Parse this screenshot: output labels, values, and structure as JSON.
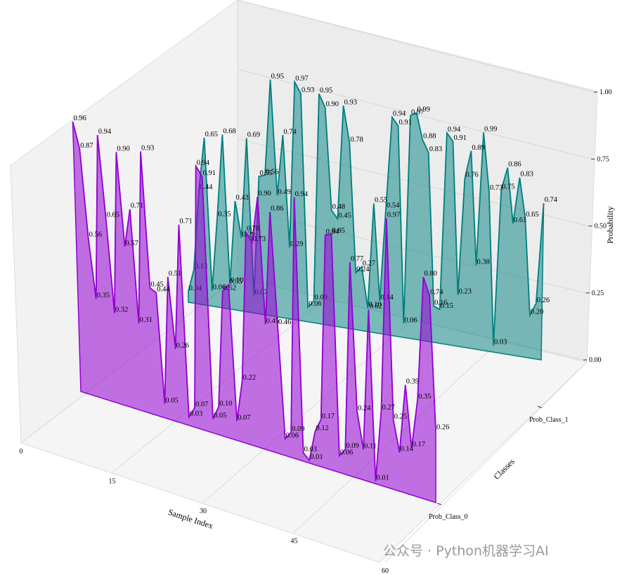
{
  "chart_data": {
    "type": "polygon3d",
    "x_label": "Sample Index",
    "y_label": "Classes",
    "z_label": "Probability",
    "watermark": "公众号 · Python机器学习AI",
    "x": [
      0,
      1,
      2,
      3,
      4,
      5,
      6,
      7,
      8,
      9,
      10,
      11,
      12,
      13,
      14,
      15,
      16,
      17,
      18,
      19,
      20,
      21,
      22,
      23,
      24,
      25,
      26,
      27,
      28,
      29,
      30,
      31,
      32,
      33,
      34,
      35,
      36,
      37,
      38,
      39,
      40,
      41,
      42,
      43,
      44,
      45,
      46,
      47,
      48,
      49,
      50,
      51,
      52,
      53,
      54,
      55,
      56,
      57,
      58,
      59
    ],
    "xlim": [
      0,
      60
    ],
    "xticks": [
      0,
      15,
      30,
      45,
      60
    ],
    "categories": [
      "Prob_Class_0",
      "Prob_Class_1"
    ],
    "zlim": [
      0,
      1
    ],
    "zticks": [
      {
        "value": 0,
        "label": "0.00"
      },
      {
        "value": 0.25,
        "label": "0.25"
      },
      {
        "value": 0.5,
        "label": "0.50"
      },
      {
        "value": 0.75,
        "label": "0.75"
      },
      {
        "value": 1,
        "label": "1.00"
      }
    ],
    "series": [
      {
        "name": "Prob_Class_0",
        "color": "#9400d3",
        "values": [
          0.96,
          0.87,
          0.56,
          0.35,
          0.94,
          0.65,
          0.32,
          0.9,
          0.57,
          0.71,
          0.31,
          0.93,
          0.45,
          0.44,
          0.05,
          0.51,
          0.26,
          0.71,
          0.03,
          0.07,
          0.94,
          0.91,
          0.05,
          0.1,
          0.52,
          0.55,
          0.07,
          0.22,
          0.76,
          0.73,
          0.9,
          0.45,
          0.86,
          0.46,
          0.06,
          0.09,
          0.94,
          0.03,
          0.01,
          0.12,
          0.17,
          0.84,
          0.85,
          0.06,
          0.09,
          0.77,
          0.24,
          0.11,
          0.62,
          0.01,
          0.27,
          0.97,
          0.25,
          0.14,
          0.39,
          0.17,
          0.35,
          0.8,
          0.74,
          0.26
        ],
        "value_labels": [
          "0.96",
          "0.87",
          "0.56",
          "0.35",
          "0.94",
          "0.65",
          "0.32",
          "0.90",
          "0.57",
          "0.71",
          "0.31",
          "0.93",
          "0.45",
          "0.44",
          "0.05",
          "0.51",
          "0.26",
          "0.71",
          "0.03",
          "0.07",
          "0.94",
          "0.91",
          "0.05",
          "0.10",
          "0.52",
          "0.55",
          "0.07",
          "0.22",
          "0.76",
          "0.73",
          "0.90",
          "0.45",
          "0.86",
          "0.46",
          "0.06",
          "0.09",
          "0.94",
          "0.03",
          "0.01",
          "0.12",
          "0.17",
          "0.84",
          "0.85",
          "0.06",
          "0.09",
          "0.77",
          "0.24",
          "0.11",
          "0.62",
          "0.01",
          "0.27",
          "0.97",
          "0.25",
          "0.14",
          "0.39",
          "0.17",
          "0.35",
          "0.80",
          "0.74",
          "0.26"
        ]
      },
      {
        "name": "Prob_Class_1",
        "color": "#008080",
        "values": [
          0.04,
          0.13,
          0.44,
          0.65,
          0.06,
          0.35,
          0.68,
          0.1,
          0.43,
          0.29,
          0.69,
          0.07,
          0.55,
          0.56,
          0.95,
          0.49,
          0.74,
          0.29,
          0.97,
          0.93,
          0.06,
          0.09,
          0.95,
          0.9,
          0.48,
          0.45,
          0.93,
          0.78,
          0.24,
          0.27,
          0.1,
          0.55,
          0.14,
          0.54,
          0.94,
          0.91,
          0.06,
          0.97,
          0.99,
          0.88,
          0.83,
          0.16,
          0.15,
          0.94,
          0.91,
          0.23,
          0.76,
          0.89,
          0.38,
          0.99,
          0.73,
          0.03,
          0.75,
          0.86,
          0.61,
          0.83,
          0.65,
          0.2,
          0.26,
          0.74
        ],
        "value_labels": [
          "0.04",
          "0.13",
          "0.44",
          "0.65",
          "0.06",
          "0.35",
          "0.68",
          "0.10",
          "0.43",
          "0.29",
          "0.69",
          "0.07",
          "0.55",
          "0.56",
          "0.95",
          "0.49",
          "0.74",
          "0.29",
          "0.97",
          "0.93",
          "0.06",
          "0.09",
          "0.95",
          "0.90",
          "0.48",
          "0.45",
          "0.93",
          "0.78",
          "0.24",
          "0.27",
          "0.10",
          "0.55",
          "0.14",
          "0.54",
          "0.94",
          "0.91",
          "0.06",
          "0.97",
          "0.99",
          "0.88",
          "0.83",
          "0.16",
          "0.15",
          "0.94",
          "0.91",
          "0.23",
          "0.76",
          "0.89",
          "0.38",
          "0.99",
          "0.73",
          "0.03",
          "0.75",
          "0.86",
          "0.61",
          "0.83",
          "0.65",
          "0.20",
          "0.26",
          "0.74"
        ]
      }
    ]
  }
}
